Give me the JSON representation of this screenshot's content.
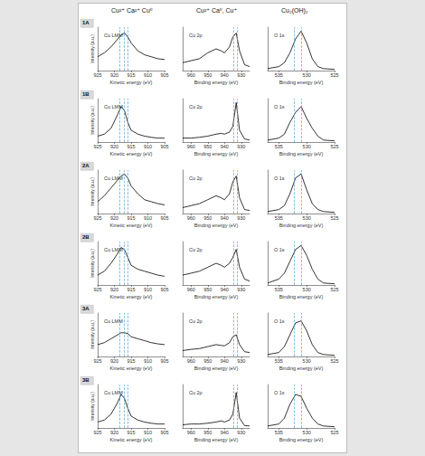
{
  "chart_data": [
    {
      "type": "line",
      "title": "Cu LMM",
      "subtitle": "Cu²⁺ Ca²⁺ Cu⁰",
      "annotation": "1A",
      "x_label": "Kinetic energy (eV)",
      "y_label": "Intensity (a.u.)",
      "x": [
        925,
        923,
        921,
        919,
        918,
        917,
        916,
        915,
        913,
        911,
        909,
        907,
        905
      ],
      "values": [
        0.35,
        0.45,
        0.6,
        0.8,
        0.9,
        0.95,
        0.85,
        0.7,
        0.5,
        0.4,
        0.35,
        0.3,
        0.28
      ],
      "color": "#000000",
      "xlim": [
        925,
        905
      ],
      "xticks": [
        925,
        920,
        915,
        910,
        905
      ],
      "ylim": [
        0,
        1.1
      ],
      "tick_labels": "x",
      "grid": false,
      "reference_lines": {
        "values": [
          918.5,
          917,
          916
        ],
        "color": "#4fa3d9"
      }
    },
    {
      "type": "line",
      "title": "Cu 2p",
      "subtitle": "Cu²⁺ Ca⁰, Cu⁺",
      "x_label": "Binding energy (eV)",
      "x": [
        965,
        960,
        955,
        950,
        945,
        942,
        940,
        937,
        935,
        933,
        931,
        928,
        925
      ],
      "values": [
        0.2,
        0.25,
        0.3,
        0.45,
        0.55,
        0.5,
        0.45,
        0.6,
        0.85,
        0.95,
        0.5,
        0.15,
        0.1
      ],
      "color": "#000000",
      "xlim": [
        965,
        925
      ],
      "xticks": [
        960,
        950,
        940,
        930
      ],
      "ylim": [
        0,
        1.1
      ],
      "tick_labels": "x",
      "grid": false,
      "reference_lines": {
        "values": [
          934.5,
          932.5
        ],
        "color": "#4fa3d9"
      }
    },
    {
      "type": "line",
      "title": "O 1s",
      "subtitle": "Cu₂(OH)₂",
      "x_label": "Binding energy (eV)",
      "x": [
        537,
        535,
        534,
        533,
        532,
        531,
        530,
        529,
        528,
        527,
        525
      ],
      "values": [
        0.05,
        0.1,
        0.2,
        0.45,
        0.8,
        1.0,
        0.7,
        0.3,
        0.1,
        0.05,
        0.03
      ],
      "color": "#000000",
      "xlim": [
        537,
        525
      ],
      "xticks": [
        535,
        530,
        525
      ],
      "ylim": [
        0,
        1.1
      ],
      "tick_labels": "x",
      "grid": false,
      "reference_lines": {
        "values": [
          532.2,
          531
        ],
        "color": "#4fa3d9"
      }
    },
    {
      "type": "line",
      "title": "Cu LMM",
      "annotation": "1B",
      "x_label": "Kinetic energy (eV)",
      "y_label": "Intensity (a.u.)",
      "x": [
        925,
        923,
        921,
        919,
        918,
        917,
        916,
        915,
        913,
        911,
        909,
        907,
        905
      ],
      "values": [
        0.15,
        0.2,
        0.35,
        0.7,
        0.9,
        0.8,
        0.5,
        0.3,
        0.2,
        0.15,
        0.12,
        0.1,
        0.1
      ],
      "color": "#000000",
      "xlim": [
        925,
        905
      ],
      "xticks": [
        925,
        920,
        915,
        910,
        905
      ],
      "ylim": [
        0,
        1.1
      ],
      "tick_labels": "x",
      "grid": false,
      "reference_lines": {
        "values": [
          918.5,
          917,
          916
        ],
        "color": "#4fa3d9"
      }
    },
    {
      "type": "line",
      "title": "Cu 2p",
      "x_label": "Binding energy (eV)",
      "x": [
        965,
        960,
        955,
        950,
        945,
        942,
        940,
        937,
        935,
        933,
        931,
        928,
        925
      ],
      "values": [
        0.1,
        0.1,
        0.12,
        0.15,
        0.2,
        0.22,
        0.2,
        0.25,
        0.4,
        1.0,
        0.3,
        0.08,
        0.05
      ],
      "color": "#000000",
      "xlim": [
        965,
        925
      ],
      "xticks": [
        960,
        950,
        940,
        930
      ],
      "ylim": [
        0,
        1.1
      ],
      "tick_labels": "x",
      "grid": false,
      "reference_lines": {
        "values": [
          934.5,
          932.5
        ],
        "color": "#4fa3d9"
      }
    },
    {
      "type": "line",
      "title": "O 1s",
      "x_label": "Binding energy (eV)",
      "x": [
        537,
        535,
        534,
        533,
        532,
        531,
        530,
        529,
        528,
        527,
        525
      ],
      "values": [
        0.05,
        0.1,
        0.2,
        0.5,
        0.75,
        0.9,
        0.6,
        0.35,
        0.15,
        0.05,
        0.03
      ],
      "color": "#000000",
      "xlim": [
        537,
        525
      ],
      "xticks": [
        535,
        530,
        525
      ],
      "ylim": [
        0,
        1.1
      ],
      "tick_labels": "x",
      "grid": false,
      "reference_lines": {
        "values": [
          532.2,
          531
        ],
        "color": "#4fa3d9"
      }
    },
    {
      "type": "line",
      "title": "Cu LMM",
      "annotation": "2A",
      "x_label": "Kinetic energy (eV)",
      "y_label": "Intensity (a.u.)",
      "x": [
        925,
        923,
        921,
        919,
        918,
        917,
        916,
        915,
        913,
        911,
        909,
        907,
        905
      ],
      "values": [
        0.3,
        0.45,
        0.65,
        0.85,
        0.95,
        1.0,
        0.9,
        0.7,
        0.5,
        0.35,
        0.3,
        0.25,
        0.22
      ],
      "color": "#000000",
      "xlim": [
        925,
        905
      ],
      "xticks": [
        925,
        920,
        915,
        910,
        905
      ],
      "ylim": [
        0,
        1.1
      ],
      "tick_labels": "x",
      "grid": false,
      "reference_lines": {
        "values": [
          918.5,
          917,
          916
        ],
        "color": "#4fa3d9"
      }
    },
    {
      "type": "line",
      "title": "Cu 2p",
      "x_label": "Binding energy (eV)",
      "x": [
        965,
        960,
        955,
        950,
        945,
        942,
        940,
        937,
        935,
        933,
        931,
        928,
        925
      ],
      "values": [
        0.15,
        0.2,
        0.25,
        0.35,
        0.45,
        0.4,
        0.35,
        0.5,
        0.8,
        0.95,
        0.4,
        0.1,
        0.08
      ],
      "color": "#000000",
      "xlim": [
        965,
        925
      ],
      "xticks": [
        960,
        950,
        940,
        930
      ],
      "ylim": [
        0,
        1.1
      ],
      "tick_labels": "x",
      "grid": false,
      "reference_lines": {
        "values": [
          934.5,
          932.5
        ],
        "color": "#4fa3d9"
      }
    },
    {
      "type": "line",
      "title": "O 1s",
      "x_label": "Binding energy (eV)",
      "x": [
        537,
        535,
        534,
        533,
        532,
        531,
        530,
        529,
        528,
        527,
        525
      ],
      "values": [
        0.05,
        0.1,
        0.2,
        0.5,
        0.9,
        1.0,
        0.6,
        0.25,
        0.1,
        0.05,
        0.03
      ],
      "color": "#000000",
      "xlim": [
        537,
        525
      ],
      "xticks": [
        535,
        530,
        525
      ],
      "ylim": [
        0,
        1.1
      ],
      "tick_labels": "x",
      "grid": false,
      "reference_lines": {
        "values": [
          532.2,
          531
        ],
        "color": "#4fa3d9"
      }
    },
    {
      "type": "line",
      "title": "Cu LMM",
      "annotation": "2B",
      "x_label": "Kinetic energy (eV)",
      "y_label": "Intensity (a.u.)",
      "x": [
        925,
        923,
        921,
        919,
        918,
        917,
        916,
        915,
        913,
        911,
        909,
        907,
        905
      ],
      "values": [
        0.25,
        0.35,
        0.55,
        0.8,
        0.95,
        0.9,
        0.7,
        0.5,
        0.4,
        0.35,
        0.3,
        0.25,
        0.22
      ],
      "color": "#000000",
      "xlim": [
        925,
        905
      ],
      "xticks": [
        925,
        920,
        915,
        910,
        905
      ],
      "ylim": [
        0,
        1.1
      ],
      "tick_labels": "x",
      "grid": false,
      "reference_lines": {
        "values": [
          918.5,
          917,
          916
        ],
        "color": "#4fa3d9"
      }
    },
    {
      "type": "line",
      "title": "Cu 2p",
      "x_label": "Binding energy (eV)",
      "x": [
        965,
        960,
        955,
        950,
        945,
        942,
        940,
        937,
        935,
        933,
        931,
        928,
        925
      ],
      "values": [
        0.25,
        0.3,
        0.35,
        0.45,
        0.55,
        0.5,
        0.45,
        0.55,
        0.7,
        0.9,
        0.45,
        0.15,
        0.1
      ],
      "color": "#000000",
      "xlim": [
        965,
        925
      ],
      "xticks": [
        960,
        950,
        940,
        930
      ],
      "ylim": [
        0,
        1.1
      ],
      "tick_labels": "x",
      "grid": false,
      "reference_lines": {
        "values": [
          934.5,
          932.5
        ],
        "color": "#4fa3d9"
      }
    },
    {
      "type": "line",
      "title": "O 1s",
      "x_label": "Binding energy (eV)",
      "x": [
        537,
        535,
        534,
        533,
        532,
        531,
        530,
        529,
        528,
        527,
        525
      ],
      "values": [
        0.05,
        0.15,
        0.3,
        0.6,
        0.9,
        1.0,
        0.75,
        0.4,
        0.15,
        0.05,
        0.03
      ],
      "color": "#000000",
      "xlim": [
        537,
        525
      ],
      "xticks": [
        535,
        530,
        525
      ],
      "ylim": [
        0,
        1.1
      ],
      "tick_labels": "x",
      "grid": false,
      "reference_lines": {
        "values": [
          532.2,
          531
        ],
        "color": "#4fa3d9"
      }
    },
    {
      "type": "line",
      "title": "Cu LMM",
      "annotation": "3A",
      "x_label": "Kinetic energy (eV)",
      "y_label": "Intensity (a.u.)",
      "x": [
        925,
        923,
        921,
        919,
        918,
        917,
        916,
        915,
        913,
        911,
        909,
        907,
        905
      ],
      "values": [
        0.3,
        0.35,
        0.45,
        0.55,
        0.6,
        0.6,
        0.58,
        0.5,
        0.45,
        0.4,
        0.35,
        0.32,
        0.3
      ],
      "color": "#000000",
      "xlim": [
        925,
        905
      ],
      "xticks": [
        925,
        920,
        915,
        910,
        905
      ],
      "ylim": [
        0,
        1.1
      ],
      "tick_labels": "x",
      "grid": false,
      "reference_lines": {
        "values": [
          918.5,
          917,
          916
        ],
        "color": "#4fa3d9"
      }
    },
    {
      "type": "line",
      "title": "Cu 2p",
      "x_label": "Binding energy (eV)",
      "x": [
        965,
        960,
        955,
        950,
        945,
        942,
        940,
        937,
        935,
        933,
        931,
        928,
        925
      ],
      "values": [
        0.15,
        0.18,
        0.2,
        0.25,
        0.3,
        0.28,
        0.27,
        0.35,
        0.5,
        0.55,
        0.3,
        0.12,
        0.1
      ],
      "color": "#000000",
      "xlim": [
        965,
        925
      ],
      "xticks": [
        960,
        950,
        940,
        930
      ],
      "ylim": [
        0,
        1.1
      ],
      "tick_labels": "x",
      "grid": false,
      "reference_lines": {
        "values": [
          934.5,
          932.5
        ],
        "color": "#4fa3d9"
      }
    },
    {
      "type": "line",
      "title": "O 1s",
      "x_label": "Binding energy (eV)",
      "x": [
        537,
        535,
        534,
        533,
        532,
        531,
        530,
        529,
        528,
        527,
        525
      ],
      "values": [
        0.05,
        0.1,
        0.25,
        0.55,
        0.85,
        0.9,
        0.65,
        0.3,
        0.1,
        0.05,
        0.03
      ],
      "color": "#000000",
      "xlim": [
        537,
        525
      ],
      "xticks": [
        535,
        530,
        525
      ],
      "ylim": [
        0,
        1.1
      ],
      "tick_labels": "x",
      "grid": false,
      "reference_lines": {
        "values": [
          532.2,
          531
        ],
        "color": "#4fa3d9"
      }
    },
    {
      "type": "line",
      "title": "Cu LMM",
      "annotation": "3B",
      "x_label": "Kinetic energy (eV)",
      "y_label": "Intensity (a.u.)",
      "x": [
        925,
        923,
        921,
        919,
        918,
        917,
        916,
        915,
        913,
        911,
        909,
        907,
        905
      ],
      "values": [
        0.15,
        0.2,
        0.35,
        0.65,
        0.85,
        0.75,
        0.5,
        0.3,
        0.2,
        0.15,
        0.12,
        0.1,
        0.1
      ],
      "color": "#000000",
      "xlim": [
        925,
        905
      ],
      "xticks": [
        925,
        920,
        915,
        910,
        905
      ],
      "ylim": [
        0,
        1.1
      ],
      "tick_labels": "x",
      "grid": false,
      "reference_lines": {
        "values": [
          918.5,
          917,
          916
        ],
        "color": "#4fa3d9"
      }
    },
    {
      "type": "line",
      "title": "Cu 2p",
      "x_label": "Binding energy (eV)",
      "x": [
        965,
        960,
        955,
        950,
        945,
        942,
        940,
        937,
        935,
        933,
        931,
        928,
        925
      ],
      "values": [
        0.08,
        0.1,
        0.1,
        0.12,
        0.15,
        0.18,
        0.15,
        0.2,
        0.35,
        0.9,
        0.25,
        0.06,
        0.05
      ],
      "color": "#000000",
      "xlim": [
        965,
        925
      ],
      "xticks": [
        960,
        950,
        940,
        930
      ],
      "ylim": [
        0,
        1.1
      ],
      "tick_labels": "x",
      "grid": false,
      "reference_lines": {
        "values": [
          934.5,
          932.5
        ],
        "color": "#4fa3d9"
      }
    },
    {
      "type": "line",
      "title": "O 1s",
      "x_label": "Binding energy (eV)",
      "x": [
        537,
        535,
        534,
        533,
        532,
        531,
        530,
        529,
        528,
        527,
        525
      ],
      "values": [
        0.05,
        0.1,
        0.25,
        0.6,
        0.85,
        0.8,
        0.5,
        0.25,
        0.1,
        0.05,
        0.03
      ],
      "color": "#000000",
      "xlim": [
        537,
        525
      ],
      "xticks": [
        535,
        530,
        525
      ],
      "ylim": [
        0,
        1.1
      ],
      "tick_labels": "x",
      "grid": false,
      "reference_lines": {
        "values": [
          532.2,
          531
        ],
        "color": "#4fa3d9"
      }
    }
  ]
}
